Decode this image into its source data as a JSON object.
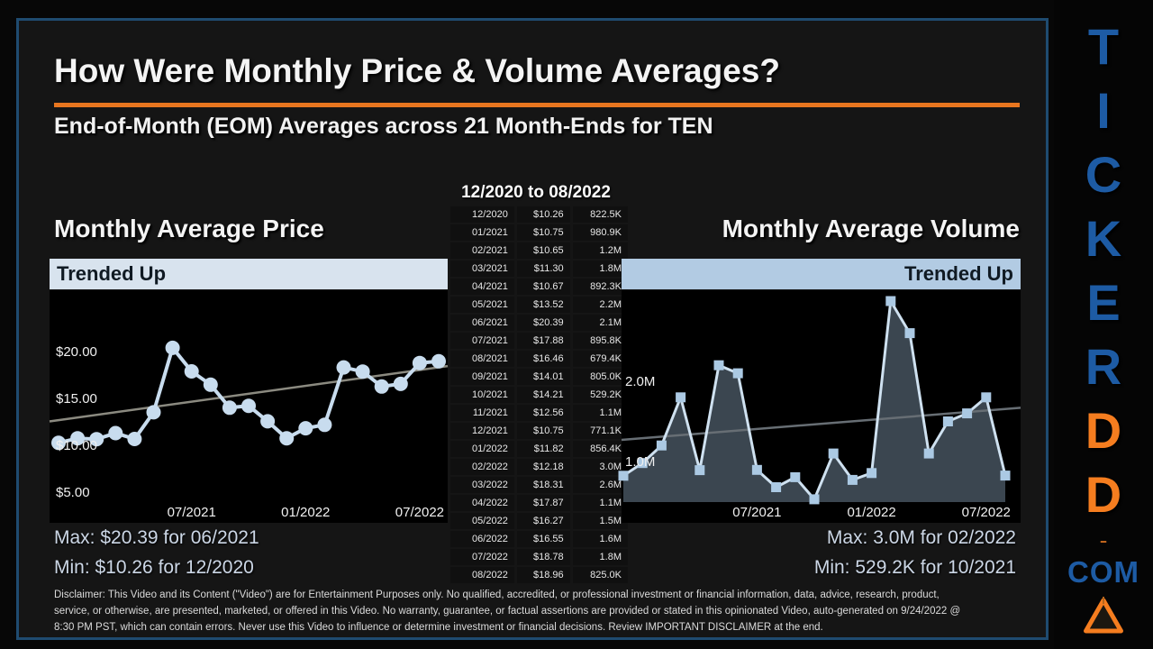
{
  "colors": {
    "accent_orange": "#e8761f",
    "brand_blue": "#1d5ba4",
    "brand_orange": "#f57d1f",
    "banner_price_bg": "#d8e3ee",
    "banner_volume_bg": "#b2cbe3",
    "banner_text": "#101a23",
    "border_blue": "#1f4b70",
    "maxmin_text": "#ccd7e6"
  },
  "header": {
    "title": "How Were Monthly Price & Volume Averages?",
    "subtitle": "End-of-Month (EOM) Averages across 21 Month-Ends for TEN"
  },
  "table": {
    "title": "12/2020 to 08/2022",
    "rows": [
      [
        "12/2020",
        "$10.26",
        "822.5K"
      ],
      [
        "01/2021",
        "$10.75",
        "980.9K"
      ],
      [
        "02/2021",
        "$10.65",
        "1.2M"
      ],
      [
        "03/2021",
        "$11.30",
        "1.8M"
      ],
      [
        "04/2021",
        "$10.67",
        "892.3K"
      ],
      [
        "05/2021",
        "$13.52",
        "2.2M"
      ],
      [
        "06/2021",
        "$20.39",
        "2.1M"
      ],
      [
        "07/2021",
        "$17.88",
        "895.8K"
      ],
      [
        "08/2021",
        "$16.46",
        "679.4K"
      ],
      [
        "09/2021",
        "$14.01",
        "805.0K"
      ],
      [
        "10/2021",
        "$14.21",
        "529.2K"
      ],
      [
        "11/2021",
        "$12.56",
        "1.1M"
      ],
      [
        "12/2021",
        "$10.75",
        "771.1K"
      ],
      [
        "01/2022",
        "$11.82",
        "856.4K"
      ],
      [
        "02/2022",
        "$12.18",
        "3.0M"
      ],
      [
        "03/2022",
        "$18.31",
        "2.6M"
      ],
      [
        "04/2022",
        "$17.87",
        "1.1M"
      ],
      [
        "05/2022",
        "$16.27",
        "1.5M"
      ],
      [
        "06/2022",
        "$16.55",
        "1.6M"
      ],
      [
        "07/2022",
        "$18.78",
        "1.8M"
      ],
      [
        "08/2022",
        "$18.96",
        "825.0K"
      ]
    ]
  },
  "price_section": {
    "title": "Monthly Average Price",
    "trend_label": "Trended Up",
    "max_text": "Max: $20.39 for 06/2021",
    "min_text": "Min: $10.26 for 12/2020"
  },
  "volume_section": {
    "title": "Monthly Average Volume",
    "trend_label": "Trended Up",
    "max_text": "Max: 3.0M for 02/2022",
    "min_text": "Min: 529.2K for 10/2021"
  },
  "sidebar": {
    "letters": [
      {
        "ch": "T",
        "color": "blue"
      },
      {
        "ch": "I",
        "color": "blue"
      },
      {
        "ch": "C",
        "color": "blue"
      },
      {
        "ch": "K",
        "color": "blue"
      },
      {
        "ch": "E",
        "color": "blue"
      },
      {
        "ch": "R",
        "color": "blue"
      },
      {
        "ch": "D",
        "color": "orange"
      },
      {
        "ch": "D",
        "color": "orange"
      }
    ],
    "dot": ".",
    "com": "COM"
  },
  "disclaimer": "Disclaimer: This Video and its Content (\"Video\") are for Entertainment Purposes only. No qualified, accredited, or professional investment or financial information, data, advice, research, product, service, or otherwise, are presented, marketed, or offered in this Video. No warranty, guarantee, or factual assertions are provided or stated in this opinionated Video, auto-generated on 9/24/2022 @ 8:30 PM PST, which can contain errors. Never use this Video to influence or determine investment or financial decisions. Review IMPORTANT DISCLAIMER at the end.",
  "chart_data": [
    {
      "type": "line",
      "title": "Monthly Average Price",
      "x": [
        "12/2020",
        "01/2021",
        "02/2021",
        "03/2021",
        "04/2021",
        "05/2021",
        "06/2021",
        "07/2021",
        "08/2021",
        "09/2021",
        "10/2021",
        "11/2021",
        "12/2021",
        "01/2022",
        "02/2022",
        "03/2022",
        "04/2022",
        "05/2022",
        "06/2022",
        "07/2022",
        "08/2022"
      ],
      "values": [
        10.26,
        10.75,
        10.65,
        11.3,
        10.67,
        13.52,
        20.39,
        17.88,
        16.46,
        14.01,
        14.21,
        12.56,
        10.75,
        11.82,
        12.18,
        18.31,
        17.87,
        16.27,
        16.55,
        18.78,
        18.96
      ],
      "unit": "USD",
      "ylim": [
        4.0,
        26.5
      ],
      "grid": false,
      "legend": "none",
      "yticks": [
        {
          "label": "$20.00",
          "value": 20
        },
        {
          "label": "$15.00",
          "value": 15
        },
        {
          "label": "$10.00",
          "value": 10
        },
        {
          "label": "$5.00",
          "value": 5
        }
      ],
      "xticks": [
        {
          "label": "07/2021",
          "index": 7
        },
        {
          "label": "01/2022",
          "index": 13
        },
        {
          "label": "07/2022",
          "index": 19
        }
      ],
      "trendline": {
        "left_value": 12.55,
        "right_value": 18.45
      },
      "marker": "circle",
      "line_color": "#c8dcee",
      "marker_color": "#c8dcee",
      "trend_color": "#8b8a80"
    },
    {
      "type": "area",
      "title": "Monthly Average Volume",
      "x": [
        "12/2020",
        "01/2021",
        "02/2021",
        "03/2021",
        "04/2021",
        "05/2021",
        "06/2021",
        "07/2021",
        "08/2021",
        "09/2021",
        "10/2021",
        "11/2021",
        "12/2021",
        "01/2022",
        "02/2022",
        "03/2022",
        "04/2022",
        "05/2022",
        "06/2022",
        "07/2022",
        "08/2022"
      ],
      "values_millions": [
        0.8225,
        0.9809,
        1.2,
        1.8,
        0.8923,
        2.2,
        2.1,
        0.8958,
        0.6794,
        0.805,
        0.5292,
        1.1,
        0.7711,
        0.8564,
        3.0,
        2.6,
        1.1,
        1.5,
        1.6,
        1.8,
        0.825
      ],
      "unit": "shares",
      "ylim": [
        0.5,
        3.1
      ],
      "grid": false,
      "legend": "none",
      "yticks": [
        {
          "label": "2.0M",
          "value": 2.0
        },
        {
          "label": "1.0M",
          "value": 1.0
        }
      ],
      "xticks": [
        {
          "label": "07/2021",
          "index": 7
        },
        {
          "label": "01/2022",
          "index": 13
        },
        {
          "label": "07/2022",
          "index": 19
        }
      ],
      "trendline": {
        "left_value": 1.27,
        "right_value": 1.67
      },
      "marker": "square",
      "line_color": "#cfe1f0",
      "marker_color": "#abc9e3",
      "fill_color": "#3b4650",
      "trend_color": "#676e74"
    }
  ]
}
